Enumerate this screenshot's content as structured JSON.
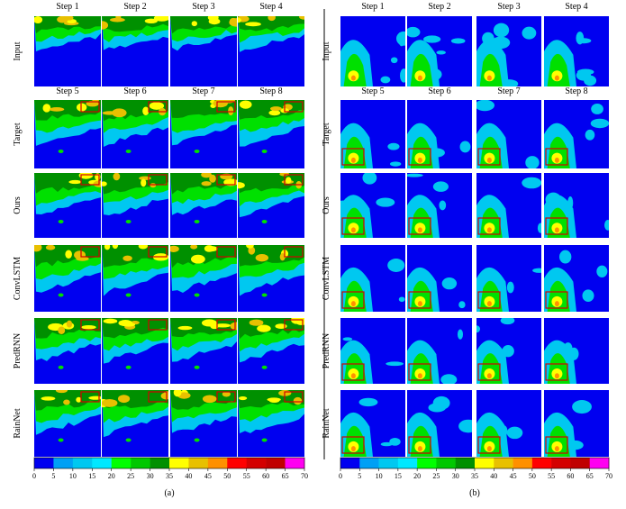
{
  "panels": [
    {
      "caption": "(a)",
      "input_steps": [
        "Step 1",
        "Step 2",
        "Step 3",
        "Step 4"
      ],
      "output_steps": [
        "Step 5",
        "Step 6",
        "Step 7",
        "Step 8"
      ],
      "rows": [
        "Input",
        "Target",
        "Ours",
        "ConvLSTM",
        "PredRNN",
        "RainNet"
      ],
      "colorbar": {
        "ticks": [
          0,
          5,
          10,
          15,
          20,
          25,
          30,
          35,
          40,
          45,
          50,
          55,
          60,
          65,
          70
        ]
      }
    },
    {
      "caption": "(b)",
      "input_steps": [
        "Step 1",
        "Step 2",
        "Step 3",
        "Step 4"
      ],
      "output_steps": [
        "Step 5",
        "Step 6",
        "Step 7",
        "Step 8"
      ],
      "rows": [
        "Input",
        "Target",
        "Ours",
        "ConvLSTM",
        "PredRNN",
        "RainNet"
      ],
      "colorbar": {
        "ticks": [
          0,
          5,
          10,
          15,
          20,
          25,
          30,
          35,
          40,
          45,
          50,
          55,
          60,
          65,
          70
        ]
      }
    }
  ]
}
